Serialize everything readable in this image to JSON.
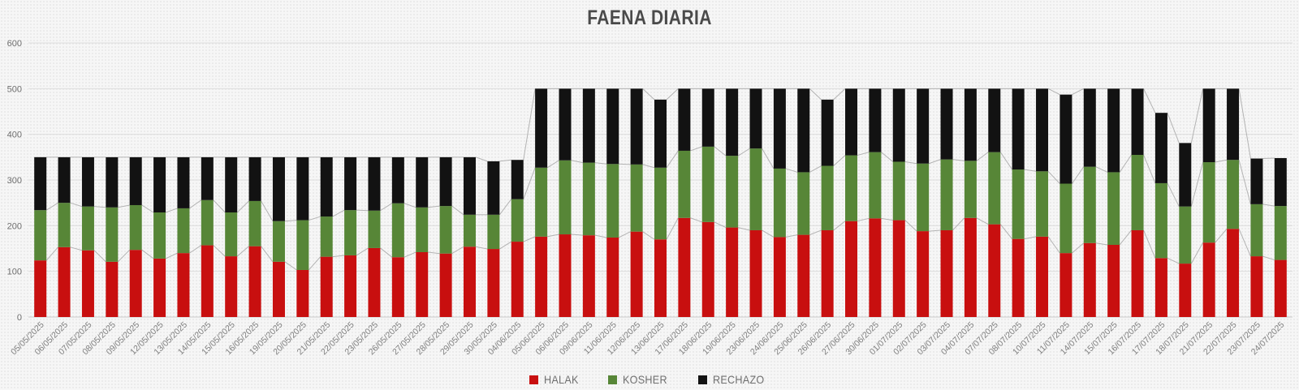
{
  "chart_data": {
    "type": "bar",
    "subtype": "stacked-vertical",
    "title": "FAENA DIARIA",
    "xlabel": "",
    "ylabel": "",
    "ylim": [
      0,
      600
    ],
    "yticks": [
      0,
      100,
      200,
      300,
      400,
      500,
      600
    ],
    "grid": true,
    "legend_position": "bottom",
    "series_connector_lines": true,
    "categories": [
      "05/05/2025",
      "06/05/2025",
      "07/05/2025",
      "08/05/2025",
      "09/05/2025",
      "12/05/2025",
      "13/05/2025",
      "14/05/2025",
      "15/05/2025",
      "16/05/2025",
      "19/05/2025",
      "20/05/2025",
      "21/05/2025",
      "22/05/2025",
      "23/05/2025",
      "26/05/2025",
      "27/05/2025",
      "28/05/2025",
      "29/05/2025",
      "30/05/2025",
      "04/06/2025",
      "05/06/2025",
      "06/06/2025",
      "09/06/2025",
      "11/06/2025",
      "12/06/2025",
      "13/06/2025",
      "17/06/2025",
      "18/06/2025",
      "19/06/2025",
      "23/06/2025",
      "24/06/2025",
      "25/06/2025",
      "26/06/2025",
      "27/06/2025",
      "30/06/2025",
      "01/07/2025",
      "02/07/2025",
      "03/07/2025",
      "04/07/2025",
      "07/07/2025",
      "08/07/2025",
      "10/07/2025",
      "11/07/2025",
      "14/07/2025",
      "15/07/2025",
      "16/07/2025",
      "17/07/2025",
      "18/07/2025",
      "21/07/2025",
      "22/07/2025",
      "23/07/2025",
      "24/07/2025"
    ],
    "series": [
      {
        "name": "HALAK",
        "color": "#c80f0f",
        "values": [
          124,
          153,
          146,
          121,
          147,
          128,
          140,
          157,
          133,
          155,
          121,
          103,
          132,
          135,
          151,
          131,
          142,
          139,
          154,
          149,
          165,
          176,
          181,
          179,
          174,
          187,
          170,
          217,
          208,
          196,
          190,
          175,
          180,
          190,
          210,
          216,
          212,
          188,
          190,
          217,
          203,
          171,
          176,
          140,
          162,
          158,
          190,
          129,
          117,
          163,
          193,
          133,
          125
        ]
      },
      {
        "name": "KOSHER",
        "color": "#578637",
        "values": [
          110,
          97,
          96,
          119,
          98,
          101,
          98,
          99,
          96,
          99,
          89,
          109,
          88,
          99,
          82,
          118,
          98,
          104,
          70,
          75,
          93,
          151,
          162,
          159,
          161,
          147,
          157,
          147,
          165,
          157,
          179,
          150,
          137,
          141,
          144,
          145,
          128,
          148,
          155,
          125,
          158,
          152,
          143,
          152,
          167,
          159,
          165,
          164,
          125,
          176,
          151,
          114,
          118
        ]
      },
      {
        "name": "RECHAZO",
        "color": "#121212",
        "values": [
          116,
          100,
          108,
          110,
          105,
          121,
          112,
          94,
          121,
          96,
          140,
          138,
          130,
          116,
          117,
          101,
          110,
          107,
          126,
          117,
          86,
          173,
          157,
          162,
          165,
          166,
          149,
          136,
          127,
          147,
          131,
          175,
          183,
          145,
          146,
          139,
          160,
          164,
          155,
          158,
          139,
          177,
          181,
          195,
          171,
          183,
          145,
          154,
          139,
          161,
          156,
          100,
          105
        ]
      }
    ],
    "style": {
      "grid_color": "#dcdcdc",
      "baseline_color": "#c9c9c9",
      "connector_line_color": "#b3b3b3",
      "ytick_color": "#6e6e6e",
      "xtick_color": "#7f7f7f",
      "title_color": "#4a4a4a"
    }
  }
}
